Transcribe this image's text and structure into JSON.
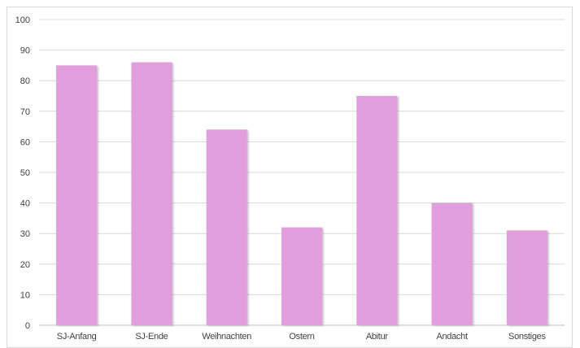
{
  "chart_data": {
    "type": "bar",
    "categories": [
      "SJ-Anfang",
      "SJ-Ende",
      "Weihnachten",
      "Ostern",
      "Abitur",
      "Andacht",
      "Sonstiges"
    ],
    "values": [
      85,
      86,
      64,
      32,
      75,
      40,
      31
    ],
    "title": "",
    "xlabel": "",
    "ylabel": "",
    "ylim": [
      0,
      100
    ],
    "yticks": [
      0,
      10,
      20,
      30,
      40,
      50,
      60,
      70,
      80,
      90,
      100
    ],
    "grid": true,
    "legend": "none",
    "colors": {
      "bar": "#e29ddc",
      "bar_shadow": "#c9c9c9",
      "grid": "#d9d9d9",
      "axis": "#bfbfbf",
      "text": "#404040"
    }
  }
}
